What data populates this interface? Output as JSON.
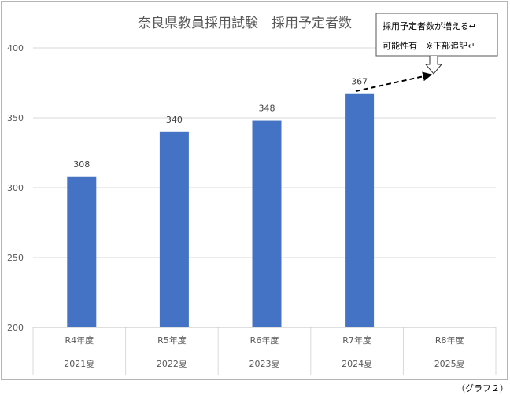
{
  "chart_data": {
    "type": "bar",
    "title": "奈良県教員採用試験　採用予定者数",
    "categories": [
      "R4年度",
      "R5年度",
      "R6年度",
      "R7年度",
      "R8年度"
    ],
    "sub_categories": [
      "2021夏",
      "2022夏",
      "2023夏",
      "2024夏",
      "2025夏"
    ],
    "values": [
      308,
      340,
      348,
      367,
      null
    ],
    "data_labels": [
      "308",
      "340",
      "348",
      "367",
      ""
    ],
    "ylim": [
      200,
      400
    ],
    "yticks": [
      200,
      250,
      300,
      350,
      400
    ],
    "ytick_labels": [
      "200",
      "250",
      "300",
      "350",
      "400"
    ],
    "grid": true,
    "xlabel": "",
    "ylabel": "",
    "bar_color": "#4472C4",
    "annotation": {
      "line1": "採用予定者数が増える↵",
      "line2": "可能性有　※下部追記↵"
    },
    "caption": "（グラフ２）"
  }
}
